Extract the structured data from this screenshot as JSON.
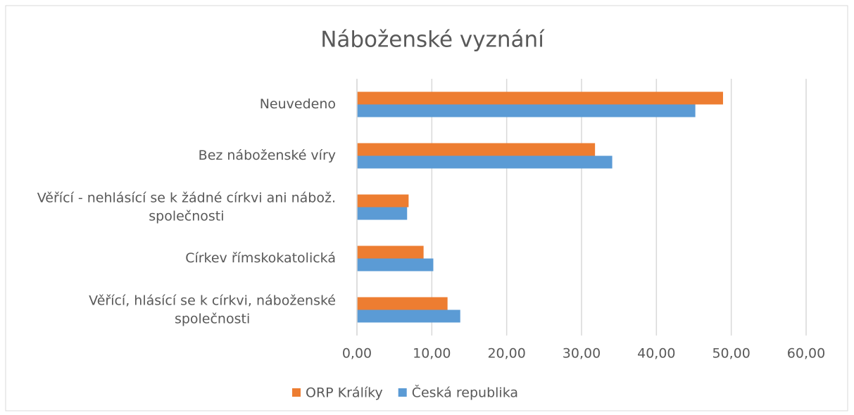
{
  "chart_data": {
    "type": "bar",
    "orientation": "horizontal",
    "title": "Náboženské vyznání",
    "categories": [
      "Neuvedeno",
      "Bez náboženské víry",
      "Věřící - nehlásící se k žádné církvi ani nábož. společnosti",
      "Církev římskokatolická",
      "Věřící, hlásící se k církvi, náboženské společnosti"
    ],
    "series": [
      {
        "name": "ORP Králíky",
        "color": "#ed7d31",
        "values": [
          48.9,
          31.8,
          6.9,
          8.9,
          12.1
        ]
      },
      {
        "name": "Česká republika",
        "color": "#5b9bd5",
        "values": [
          45.2,
          34.1,
          6.7,
          10.2,
          13.8
        ]
      }
    ],
    "xlim": [
      0,
      60
    ],
    "xticks": [
      {
        "value": 0,
        "label": "0,00"
      },
      {
        "value": 10,
        "label": "10,00"
      },
      {
        "value": 20,
        "label": "20,00"
      },
      {
        "value": 30,
        "label": "30,00"
      },
      {
        "value": 40,
        "label": "40,00"
      },
      {
        "value": 50,
        "label": "50,00"
      },
      {
        "value": 60,
        "label": "60,00"
      }
    ],
    "grid": true,
    "legend": "bottom"
  }
}
